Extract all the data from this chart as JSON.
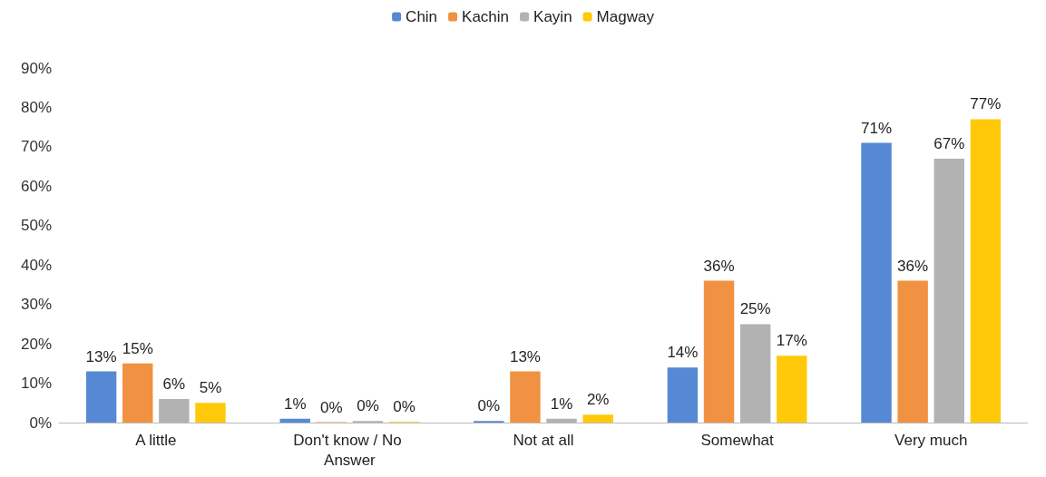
{
  "chart_data": {
    "type": "bar",
    "categories": [
      "A little",
      "Don't know / No Answer",
      "Not at all",
      "Somewhat",
      "Very much"
    ],
    "series": [
      {
        "name": "Chin",
        "color": "#5689d4",
        "values": [
          13,
          1,
          0.4,
          14,
          71
        ],
        "value_labels": [
          "13%",
          "1%",
          "0%",
          "14%",
          "71%"
        ]
      },
      {
        "name": "Kachin",
        "color": "#f09242",
        "values": [
          15,
          0.1,
          13,
          36,
          36
        ],
        "value_labels": [
          "15%",
          "0%",
          "13%",
          "36%",
          "36%"
        ]
      },
      {
        "name": "Kayin",
        "color": "#b2b2b2",
        "values": [
          6,
          0.4,
          1,
          25,
          67
        ],
        "value_labels": [
          "6%",
          "0%",
          "1%",
          "25%",
          "67%"
        ]
      },
      {
        "name": "Magway",
        "color": "#ffc90a",
        "values": [
          5,
          0.2,
          2,
          17,
          77
        ],
        "value_labels": [
          "5%",
          "0%",
          "2%",
          "17%",
          "77%"
        ]
      }
    ],
    "ylim": [
      0,
      90
    ],
    "yticks": [
      {
        "value": 0,
        "label": "0%"
      },
      {
        "value": 10,
        "label": "10%"
      },
      {
        "value": 20,
        "label": "20%"
      },
      {
        "value": 30,
        "label": "30%"
      },
      {
        "value": 40,
        "label": "40%"
      },
      {
        "value": 50,
        "label": "50%"
      },
      {
        "value": 60,
        "label": "60%"
      },
      {
        "value": 70,
        "label": "70%"
      },
      {
        "value": 80,
        "label": "80%"
      },
      {
        "value": 90,
        "label": "90%"
      }
    ],
    "grid": false,
    "legend": "top"
  }
}
